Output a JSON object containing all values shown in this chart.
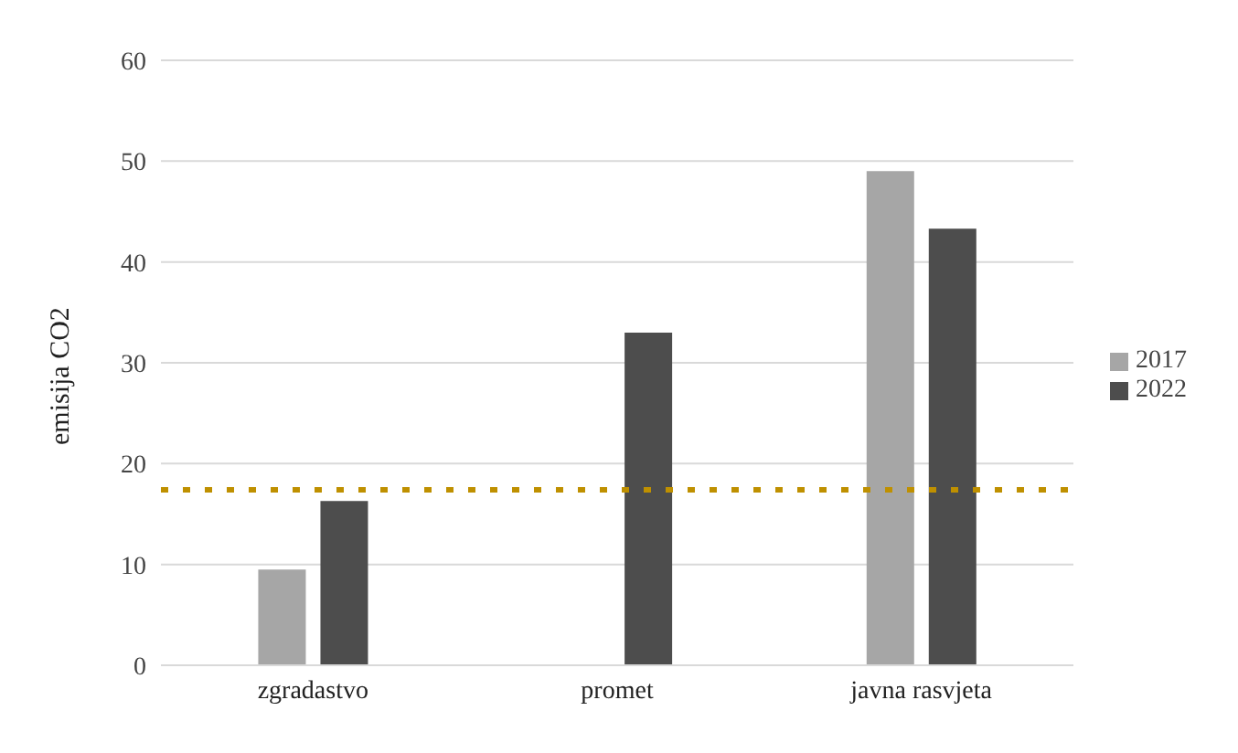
{
  "chart_data": {
    "type": "bar",
    "ylabel": "emisija CO2",
    "categories": [
      "zgradastvo",
      "promet",
      "javna rasvjeta"
    ],
    "series": [
      {
        "name": "2017",
        "color": "#a6a6a6",
        "values": [
          9.5,
          null,
          49
        ]
      },
      {
        "name": "2022",
        "color": "#4d4d4d",
        "values": [
          16.3,
          33,
          43.3
        ]
      }
    ],
    "ylim": [
      0,
      60
    ],
    "yticks": [
      0,
      10,
      20,
      30,
      40,
      50,
      60
    ],
    "grid": "y",
    "legend": "right",
    "ref_lines": [
      {
        "axis": "y",
        "value": 17.4,
        "color": "#bf9000",
        "line_style": "dotted"
      }
    ]
  }
}
